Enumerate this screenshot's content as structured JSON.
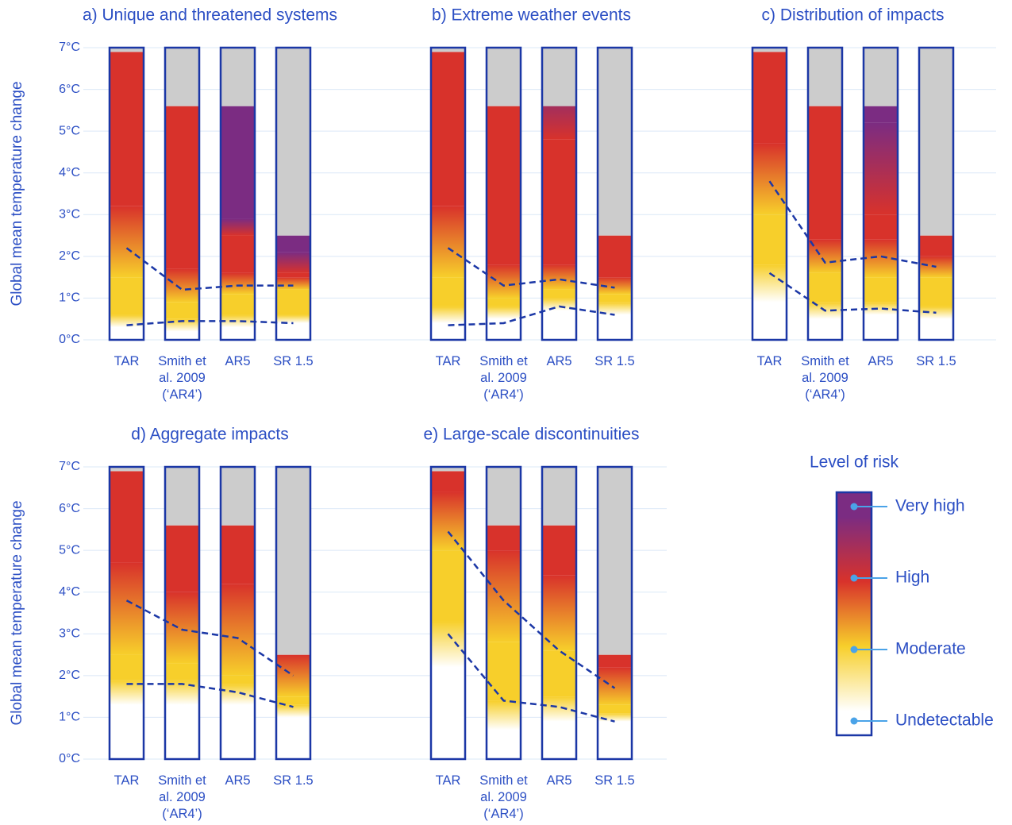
{
  "chart_data": [
    {
      "type": "ember",
      "title": "a) Unique and threatened systems",
      "ylabel": "Global mean temperature change",
      "categories": [
        "TAR",
        "Smith et al. 2009 (‘AR4’)",
        "AR5",
        "SR 1.5"
      ],
      "ylim": [
        0,
        7
      ],
      "yticks": [
        {
          "value": 0,
          "label": "0°C"
        },
        {
          "value": 1,
          "label": "1°C"
        },
        {
          "value": 2,
          "label": "2°C"
        },
        {
          "value": 3,
          "label": "3°C"
        },
        {
          "value": 4,
          "label": "4°C"
        },
        {
          "value": 5,
          "label": "5°C"
        },
        {
          "value": 6,
          "label": "6°C"
        },
        {
          "value": 7,
          "label": "7°C"
        }
      ],
      "grid": true,
      "embers": [
        {
          "top": 6.9,
          "transitions": [
            [
              0.3,
              0.6
            ],
            [
              1.5,
              3.2
            ]
          ]
        },
        {
          "top": 5.6,
          "transitions": [
            [
              0.2,
              0.5
            ],
            [
              0.9,
              1.7
            ]
          ]
        },
        {
          "top": 5.6,
          "transitions": [
            [
              0.3,
              0.6
            ],
            [
              1.1,
              1.6
            ],
            [
              2.5,
              2.9
            ]
          ]
        },
        {
          "top": 2.5,
          "transitions": [
            [
              0.4,
              0.6
            ],
            [
              1.2,
              1.5
            ],
            [
              1.6,
              2.1
            ]
          ]
        }
      ],
      "series": [
        {
          "values": [
            2.2,
            1.2,
            1.3,
            1.3
          ]
        },
        {
          "values": [
            0.35,
            0.45,
            0.45,
            0.4
          ]
        }
      ]
    },
    {
      "type": "ember",
      "title": "b) Extreme weather events",
      "categories": [
        "TAR",
        "Smith et al. 2009 (‘AR4’)",
        "AR5",
        "SR 1.5"
      ],
      "ylim": [
        0,
        7
      ],
      "embers": [
        {
          "top": 6.9,
          "transitions": [
            [
              0.4,
              0.8
            ],
            [
              1.5,
              3.2
            ]
          ]
        },
        {
          "top": 5.6,
          "transitions": [
            [
              0.5,
              0.8
            ],
            [
              1.0,
              1.8
            ]
          ]
        },
        {
          "top": 5.6,
          "transitions": [
            [
              0.7,
              1.0
            ],
            [
              1.2,
              1.8
            ],
            [
              4.8,
              6.2
            ]
          ]
        },
        {
          "top": 2.5,
          "transitions": [
            [
              0.6,
              0.9
            ],
            [
              1.1,
              1.5
            ]
          ]
        }
      ],
      "series": [
        {
          "values": [
            2.2,
            1.3,
            1.45,
            1.25
          ]
        },
        {
          "values": [
            0.35,
            0.4,
            0.8,
            0.6
          ]
        }
      ]
    },
    {
      "type": "ember",
      "title": "c) Distribution of impacts",
      "categories": [
        "TAR",
        "Smith et al. 2009 (‘AR4’)",
        "AR5",
        "SR 1.5"
      ],
      "ylim": [
        0,
        7
      ],
      "embers": [
        {
          "top": 6.9,
          "transitions": [
            [
              0.9,
              1.8
            ],
            [
              3.0,
              4.7
            ]
          ]
        },
        {
          "top": 5.6,
          "transitions": [
            [
              0.5,
              0.9
            ],
            [
              1.6,
              2.4
            ]
          ]
        },
        {
          "top": 5.6,
          "transitions": [
            [
              0.6,
              0.9
            ],
            [
              1.5,
              2.4
            ],
            [
              3.0,
              5.2
            ]
          ]
        },
        {
          "top": 2.5,
          "transitions": [
            [
              0.5,
              0.8
            ],
            [
              1.5,
              2.0
            ]
          ]
        }
      ],
      "series": [
        {
          "values": [
            3.8,
            1.85,
            2.0,
            1.75
          ]
        },
        {
          "values": [
            1.6,
            0.7,
            0.75,
            0.65
          ]
        }
      ]
    },
    {
      "type": "ember",
      "title": "d) Aggregate impacts",
      "ylabel": "Global mean temperature change",
      "categories": [
        "TAR",
        "Smith et al. 2009 (‘AR4’)",
        "AR5",
        "SR 1.5"
      ],
      "ylim": [
        0,
        7
      ],
      "yticks": [
        {
          "value": 0,
          "label": "0°C"
        },
        {
          "value": 1,
          "label": "1°C"
        },
        {
          "value": 2,
          "label": "2°C"
        },
        {
          "value": 3,
          "label": "3°C"
        },
        {
          "value": 4,
          "label": "4°C"
        },
        {
          "value": 5,
          "label": "5°C"
        },
        {
          "value": 6,
          "label": "6°C"
        },
        {
          "value": 7,
          "label": "7°C"
        }
      ],
      "grid": true,
      "embers": [
        {
          "top": 6.9,
          "transitions": [
            [
              1.3,
              1.9
            ],
            [
              2.5,
              4.7
            ]
          ]
        },
        {
          "top": 5.6,
          "transitions": [
            [
              1.3,
              1.9
            ],
            [
              2.3,
              4.0
            ]
          ]
        },
        {
          "top": 5.6,
          "transitions": [
            [
              1.3,
              1.8
            ],
            [
              2.0,
              4.2
            ]
          ]
        },
        {
          "top": 2.5,
          "transitions": [
            [
              1.0,
              1.3
            ],
            [
              1.5,
              2.5
            ]
          ]
        }
      ],
      "series": [
        {
          "values": [
            3.8,
            3.1,
            2.9,
            2.0
          ]
        },
        {
          "values": [
            1.8,
            1.8,
            1.6,
            1.25
          ]
        }
      ]
    },
    {
      "type": "ember",
      "title": "e) Large-scale discontinuities",
      "categories": [
        "TAR",
        "Smith et al. 2009 (‘AR4’)",
        "AR5",
        "SR 1.5"
      ],
      "ylim": [
        0,
        7
      ],
      "embers": [
        {
          "top": 6.9,
          "transitions": [
            [
              2.2,
              3.3
            ],
            [
              5.0,
              6.4
            ]
          ]
        },
        {
          "top": 5.6,
          "transitions": [
            [
              0.7,
              1.4
            ],
            [
              2.8,
              5.0
            ]
          ]
        },
        {
          "top": 5.6,
          "transitions": [
            [
              0.9,
              1.5
            ],
            [
              2.6,
              4.4
            ]
          ]
        },
        {
          "top": 2.5,
          "transitions": [
            [
              0.9,
              1.1
            ],
            [
              1.3,
              2.2
            ]
          ]
        }
      ],
      "series": [
        {
          "values": [
            5.45,
            3.8,
            2.6,
            1.7
          ]
        },
        {
          "values": [
            3.0,
            1.4,
            1.25,
            0.9
          ]
        }
      ]
    }
  ],
  "legend": {
    "title": "Level of risk",
    "levels": [
      {
        "name": "Undetectable",
        "color": "#ffffff"
      },
      {
        "name": "Moderate",
        "color": "#f7cf2b"
      },
      {
        "name": "High",
        "color": "#d8322b"
      },
      {
        "name": "Very high",
        "color": "#7b2c82"
      }
    ]
  },
  "grey_color": "#cccccc",
  "frame_color": "#1b37a6",
  "line_color": "#1b37a6"
}
